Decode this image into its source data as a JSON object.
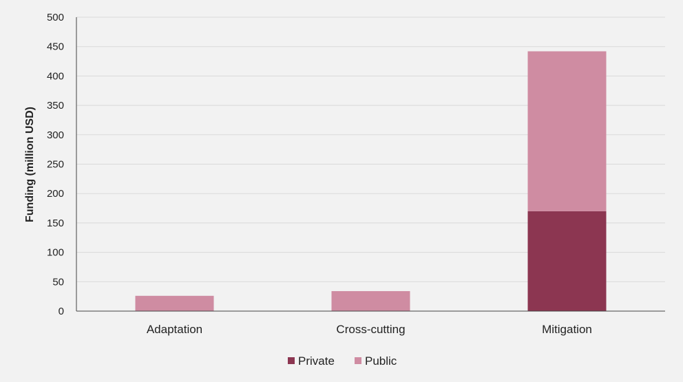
{
  "chart_data": {
    "type": "bar",
    "stacked": true,
    "categories": [
      "Adaptation",
      "Cross-cutting",
      "Mitigation"
    ],
    "series": [
      {
        "name": "Private",
        "values": [
          0,
          0,
          170
        ],
        "color": "#8c3651"
      },
      {
        "name": "Public",
        "values": [
          26,
          34,
          272
        ],
        "color": "#cf8ca2"
      }
    ],
    "ylabel": "Funding (million USD)",
    "xlabel": "",
    "ylim": [
      0,
      500
    ],
    "yticks": [
      0,
      50,
      100,
      150,
      200,
      250,
      300,
      350,
      400,
      450,
      500
    ],
    "grid": true,
    "legend": "bottom"
  }
}
